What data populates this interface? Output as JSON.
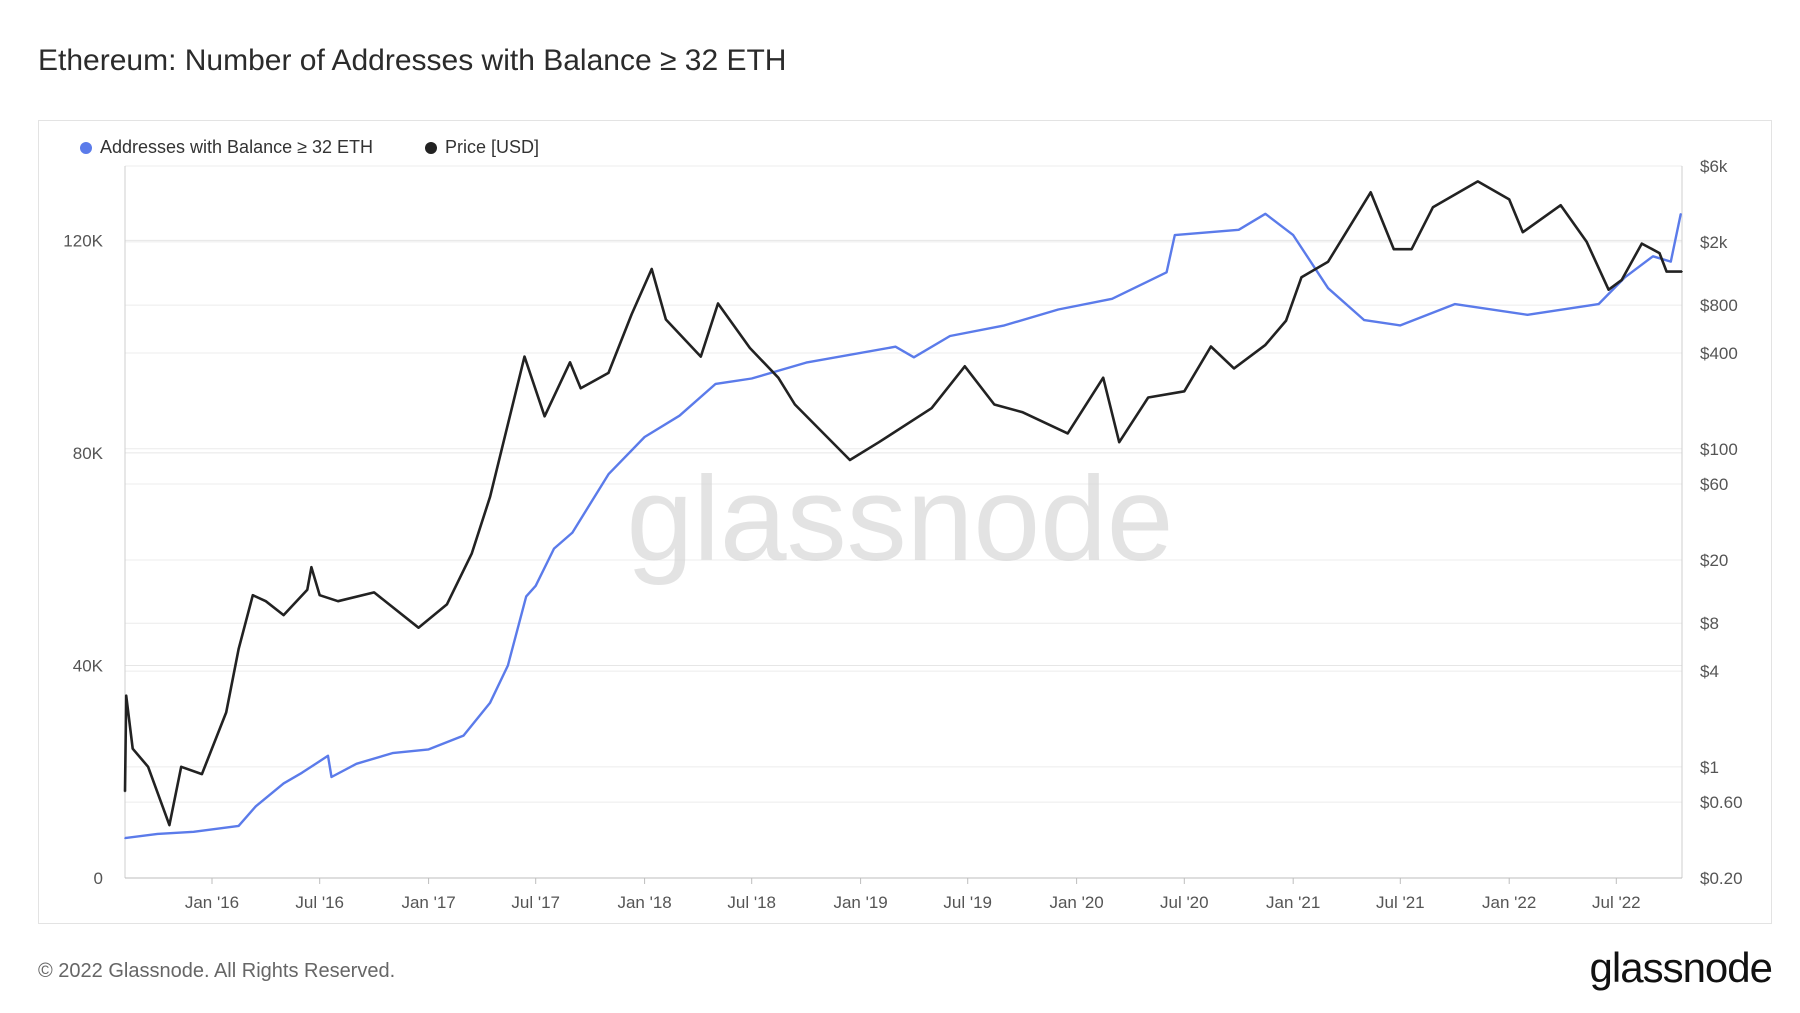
{
  "title": "Ethereum: Number of Addresses with Balance ≥ 32 ETH",
  "footer": "© 2022 Glassnode. All Rights Reserved.",
  "brand": "glassnode",
  "watermark": "glassnode",
  "colors": {
    "addresses": "#5b7bea",
    "price": "#222222"
  },
  "chart_data": {
    "type": "line",
    "legend_position": "top-left",
    "grid": true,
    "x_ticks": [
      "Jan '16",
      "Jul '16",
      "Jan '17",
      "Jul '17",
      "Jan '18",
      "Jul '18",
      "Jan '19",
      "Jul '19",
      "Jan '20",
      "Jul '20",
      "Jan '21",
      "Jul '21",
      "Jan '22",
      "Jul '22"
    ],
    "x_range": [
      "2015-08-07",
      "2022-10-20"
    ],
    "y_left": {
      "ticks": [
        "0",
        "40K",
        "80K",
        "120K"
      ],
      "tick_values": [
        0,
        40000,
        80000,
        120000
      ],
      "range": [
        0,
        134000
      ]
    },
    "y_right": {
      "scale": "log",
      "ticks": [
        "$0.20",
        "$0.60",
        "$1",
        "$4",
        "$8",
        "$20",
        "$60",
        "$100",
        "$400",
        "$800",
        "$2k",
        "$6k"
      ],
      "tick_values": [
        0.2,
        0.6,
        1,
        4,
        8,
        20,
        60,
        100,
        400,
        800,
        2000,
        6000
      ],
      "range": [
        0.2,
        6000
      ]
    },
    "series": [
      {
        "name": "Addresses with Balance ≥ 32 ETH",
        "axis": "left",
        "points": [
          [
            "2015-08-07",
            7500
          ],
          [
            "2015-10-01",
            8300
          ],
          [
            "2015-12-01",
            8700
          ],
          [
            "2016-02-15",
            9800
          ],
          [
            "2016-03-15",
            13500
          ],
          [
            "2016-05-01",
            17800
          ],
          [
            "2016-06-01",
            19800
          ],
          [
            "2016-07-15",
            23000
          ],
          [
            "2016-07-21",
            19000
          ],
          [
            "2016-09-01",
            21500
          ],
          [
            "2016-11-01",
            23500
          ],
          [
            "2017-01-01",
            24200
          ],
          [
            "2017-03-01",
            26800
          ],
          [
            "2017-04-15",
            33000
          ],
          [
            "2017-05-15",
            40000
          ],
          [
            "2017-06-15",
            53000
          ],
          [
            "2017-07-01",
            55000
          ],
          [
            "2017-08-01",
            62000
          ],
          [
            "2017-09-01",
            65000
          ],
          [
            "2017-11-01",
            76000
          ],
          [
            "2018-01-01",
            83000
          ],
          [
            "2018-03-01",
            87000
          ],
          [
            "2018-05-01",
            93000
          ],
          [
            "2018-07-01",
            94000
          ],
          [
            "2018-10-01",
            97000
          ],
          [
            "2019-03-01",
            100000
          ],
          [
            "2019-04-01",
            98000
          ],
          [
            "2019-06-01",
            102000
          ],
          [
            "2019-09-01",
            104000
          ],
          [
            "2019-12-01",
            107000
          ],
          [
            "2020-03-01",
            109000
          ],
          [
            "2020-06-01",
            114000
          ],
          [
            "2020-06-15",
            121000
          ],
          [
            "2020-10-01",
            122000
          ],
          [
            "2020-11-15",
            125000
          ],
          [
            "2021-01-01",
            121000
          ],
          [
            "2021-03-01",
            111000
          ],
          [
            "2021-05-01",
            105000
          ],
          [
            "2021-07-01",
            104000
          ],
          [
            "2021-10-01",
            108000
          ],
          [
            "2022-02-01",
            106000
          ],
          [
            "2022-06-01",
            108000
          ],
          [
            "2022-07-15",
            113000
          ],
          [
            "2022-09-01",
            117000
          ],
          [
            "2022-10-01",
            116000
          ],
          [
            "2022-10-18",
            125000
          ]
        ]
      },
      {
        "name": "Price [USD]",
        "axis": "right",
        "points": [
          [
            "2015-08-07",
            0.7
          ],
          [
            "2015-08-09",
            2.8
          ],
          [
            "2015-08-20",
            1.3
          ],
          [
            "2015-09-15",
            1.0
          ],
          [
            "2015-10-21",
            0.43
          ],
          [
            "2015-11-10",
            1.0
          ],
          [
            "2015-12-15",
            0.9
          ],
          [
            "2016-01-25",
            2.2
          ],
          [
            "2016-02-15",
            5.5
          ],
          [
            "2016-03-10",
            12.0
          ],
          [
            "2016-04-01",
            11.0
          ],
          [
            "2016-05-01",
            9.0
          ],
          [
            "2016-06-10",
            13.0
          ],
          [
            "2016-06-17",
            18.0
          ],
          [
            "2016-07-01",
            12.0
          ],
          [
            "2016-08-01",
            11.0
          ],
          [
            "2016-10-01",
            12.5
          ],
          [
            "2016-12-15",
            7.5
          ],
          [
            "2017-02-01",
            10.5
          ],
          [
            "2017-03-15",
            22.0
          ],
          [
            "2017-04-15",
            50.0
          ],
          [
            "2017-06-12",
            380.0
          ],
          [
            "2017-07-16",
            160.0
          ],
          [
            "2017-08-28",
            350.0
          ],
          [
            "2017-09-15",
            240.0
          ],
          [
            "2017-11-01",
            300.0
          ],
          [
            "2017-12-10",
            700.0
          ],
          [
            "2018-01-13",
            1350.0
          ],
          [
            "2018-02-06",
            650.0
          ],
          [
            "2018-04-06",
            380.0
          ],
          [
            "2018-05-05",
            820.0
          ],
          [
            "2018-06-28",
            430.0
          ],
          [
            "2018-08-15",
            280.0
          ],
          [
            "2018-09-12",
            190.0
          ],
          [
            "2018-12-14",
            85.0
          ],
          [
            "2019-02-01",
            110.0
          ],
          [
            "2019-05-01",
            180.0
          ],
          [
            "2019-06-26",
            330.0
          ],
          [
            "2019-08-15",
            190.0
          ],
          [
            "2019-10-01",
            170.0
          ],
          [
            "2019-12-17",
            125.0
          ],
          [
            "2020-02-15",
            280.0
          ],
          [
            "2020-03-13",
            110.0
          ],
          [
            "2020-05-01",
            210.0
          ],
          [
            "2020-07-01",
            230.0
          ],
          [
            "2020-08-15",
            440.0
          ],
          [
            "2020-09-23",
            320.0
          ],
          [
            "2020-11-15",
            450.0
          ],
          [
            "2020-12-20",
            640.0
          ],
          [
            "2021-01-15",
            1200.0
          ],
          [
            "2021-03-01",
            1500.0
          ],
          [
            "2021-05-12",
            4100.0
          ],
          [
            "2021-06-20",
            1800.0
          ],
          [
            "2021-07-20",
            1800.0
          ],
          [
            "2021-08-25",
            3300.0
          ],
          [
            "2021-11-09",
            4800.0
          ],
          [
            "2022-01-01",
            3700.0
          ],
          [
            "2022-01-24",
            2300.0
          ],
          [
            "2022-03-29",
            3400.0
          ],
          [
            "2022-05-12",
            2000.0
          ],
          [
            "2022-06-18",
            1000.0
          ],
          [
            "2022-07-10",
            1150.0
          ],
          [
            "2022-08-13",
            1950.0
          ],
          [
            "2022-09-12",
            1700.0
          ],
          [
            "2022-09-24",
            1300.0
          ],
          [
            "2022-10-20",
            1300.0
          ]
        ]
      }
    ]
  }
}
